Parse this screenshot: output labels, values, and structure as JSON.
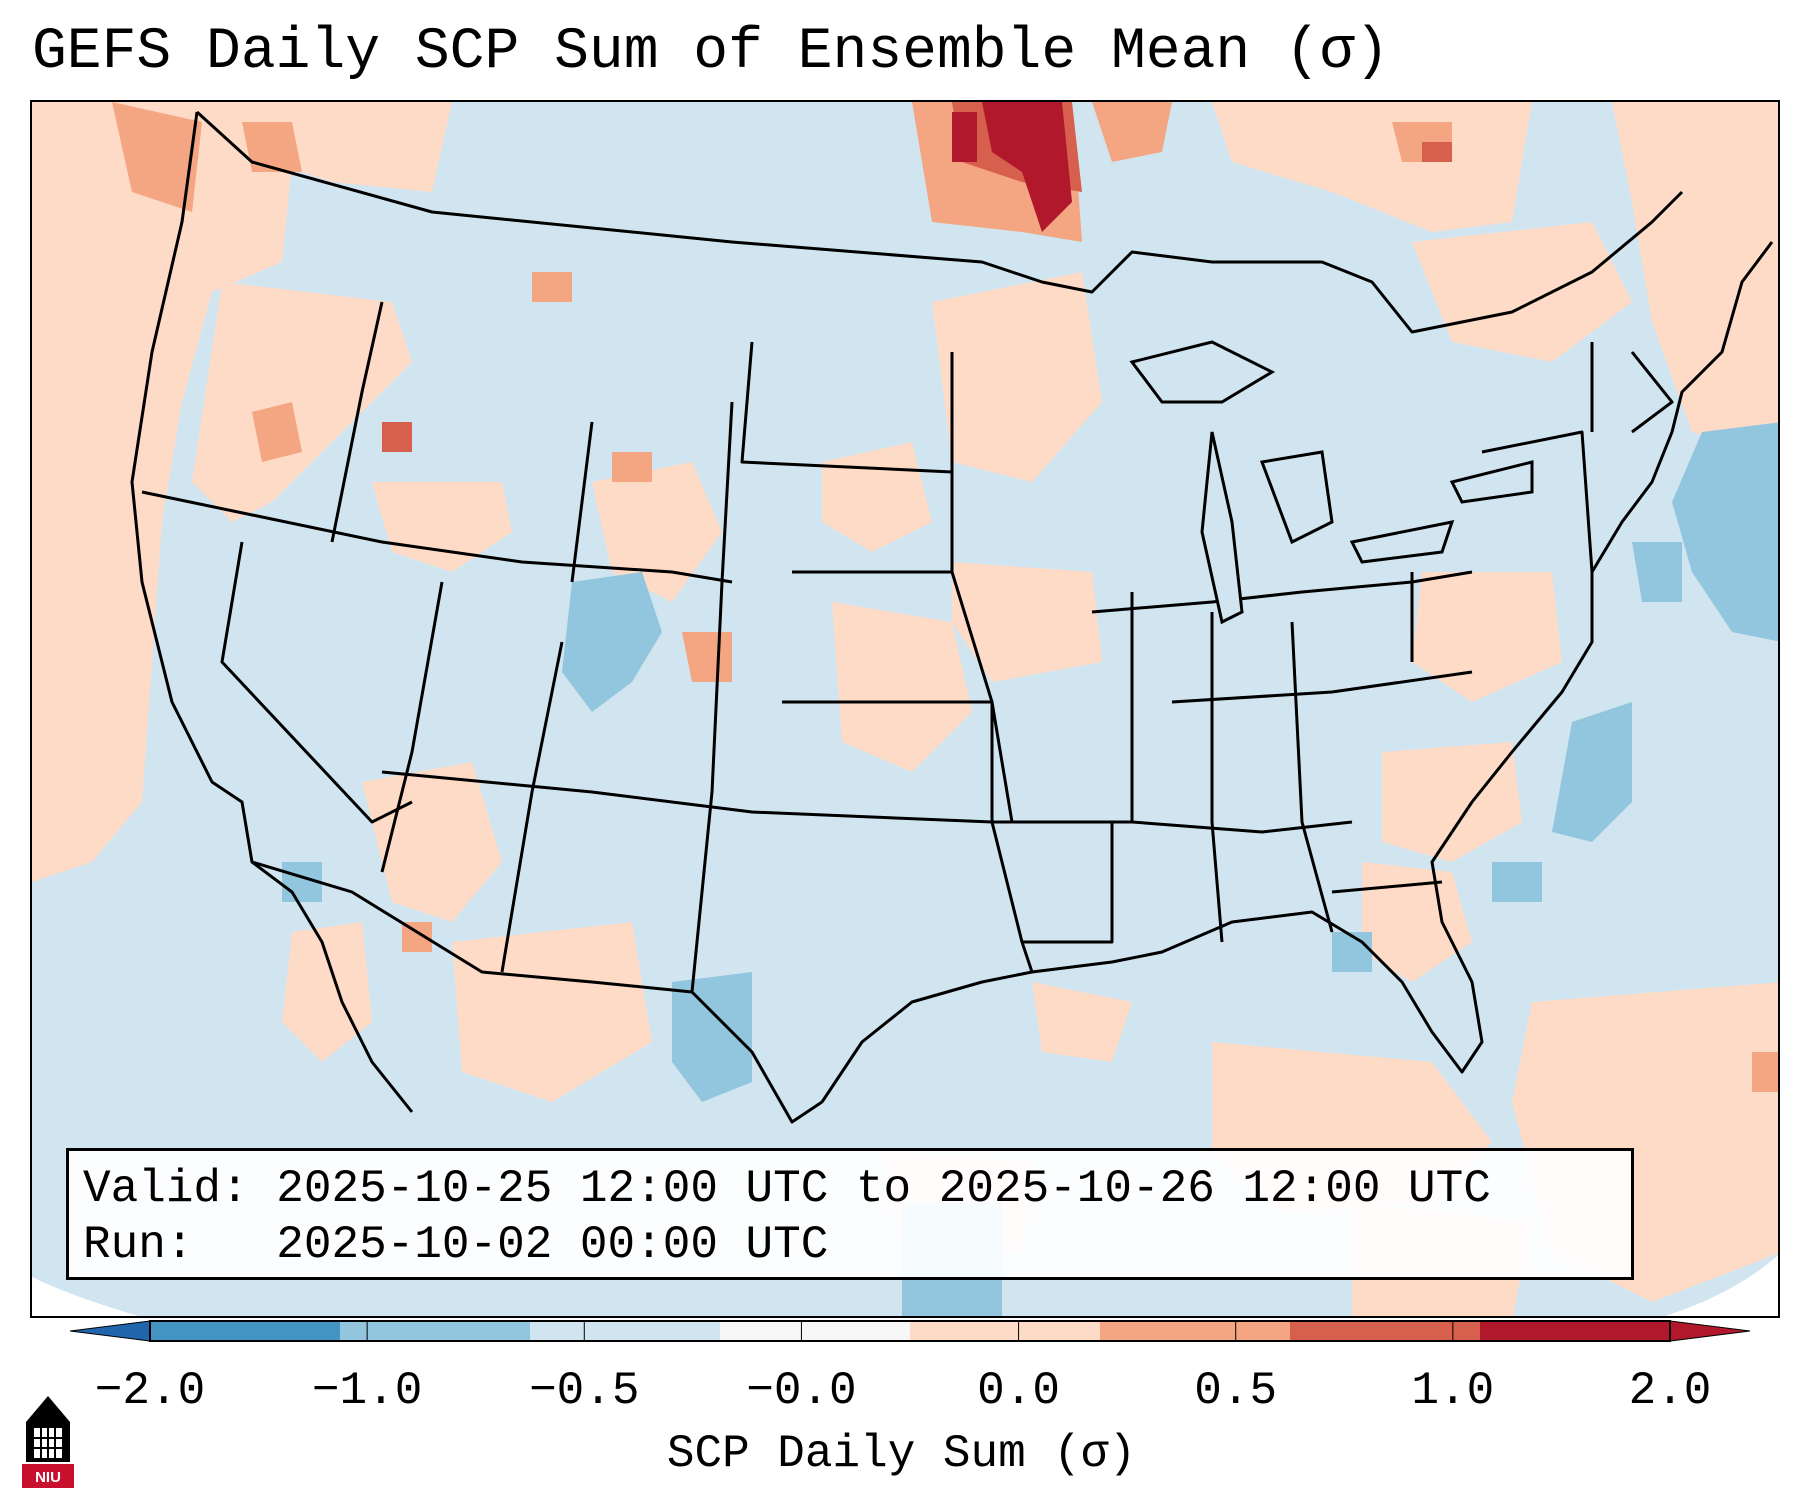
{
  "title": "GEFS Daily SCP Sum of Ensemble Mean (σ)",
  "info": {
    "valid_label": "Valid:",
    "valid_value": "2025-10-25 12:00 UTC to 2025-10-26 12:00 UTC",
    "run_label": "Run:",
    "run_value": "2025-10-02 00:00 UTC"
  },
  "colorbar": {
    "label": "SCP Daily Sum (σ)",
    "ticks": [
      "−2.0",
      "−1.0",
      "−0.5",
      "−0.0",
      "0.0",
      "0.5",
      "1.0",
      "2.0"
    ],
    "colors": [
      "#4393c3",
      "#92c5de",
      "#d1e5f0",
      "#f7f7f7",
      "#fddbc7",
      "#f4a582",
      "#d6604d",
      "#b2182b"
    ],
    "under_color": "#2166ac",
    "over_color": "#b2182b"
  },
  "logo": {
    "text": "NIU",
    "icon": "university-tower-icon"
  },
  "map": {
    "background_color": "#d1e5f0",
    "region": "Continental United States"
  }
}
